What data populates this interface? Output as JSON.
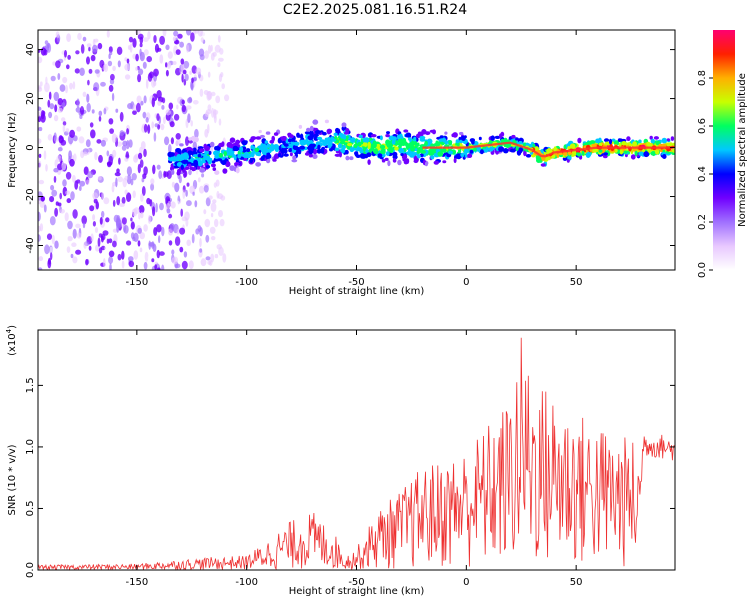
{
  "title": "C2E2.2025.081.16.51.R24",
  "chart_data": [
    {
      "type": "heatmap",
      "xlabel": "Height of straight line (km)",
      "ylabel": "Frequency (Hz)",
      "xlim": [
        -195,
        95
      ],
      "ylim": [
        -50,
        48
      ],
      "xticks": [
        -150,
        -100,
        -50,
        0,
        50
      ],
      "yticks": [
        -40,
        -20,
        0,
        20,
        40
      ],
      "colorbar": {
        "label": "Normalized spectral amplitude",
        "range": [
          0,
          1
        ],
        "ticks": [
          0.0,
          0.2,
          0.4,
          0.6,
          0.8
        ],
        "tick_labels": [
          "0.0",
          "0.2",
          "0.4",
          "0.6",
          "0.8"
        ],
        "colormap": [
          "#ffffff",
          "#e8c8ff",
          "#a070ff",
          "#7000ff",
          "#0000ff",
          "#00c8ff",
          "#00ff60",
          "#c8ff00",
          "#ffb000",
          "#ff2000",
          "#ff0070"
        ]
      },
      "ridge": {
        "x": [
          -130,
          -120,
          -110,
          -100,
          -90,
          -80,
          -70,
          -60,
          -55,
          -50,
          -40,
          -30,
          -20,
          -10,
          0,
          10,
          20,
          30,
          35,
          40,
          50,
          60,
          70,
          80,
          90
        ],
        "y": [
          -5,
          -4,
          -3,
          -2,
          0,
          1,
          2,
          3,
          2,
          1,
          0,
          1,
          0,
          0,
          0,
          1,
          2,
          -1,
          -4,
          -2,
          -1,
          0,
          0,
          0,
          0
        ]
      }
    },
    {
      "type": "line",
      "xlabel": "Height of straight line (km)",
      "ylabel": "SNR (10 * v/v)",
      "multiplier": "(x10",
      "multiplier_exp": "4",
      "xlim": [
        -195,
        95
      ],
      "ylim": [
        0,
        1.95
      ],
      "xticks": [
        -150,
        -100,
        -50,
        0,
        50
      ],
      "yticks": [
        0.0,
        0.5,
        1.0,
        1.5
      ],
      "ytick_labels": [
        "0.0",
        "0.5",
        "1.0",
        "1.5"
      ],
      "color": "#ee3030",
      "envelope": {
        "x": [
          -195,
          -150,
          -120,
          -100,
          -90,
          -80,
          -70,
          -60,
          -55,
          -50,
          -40,
          -30,
          -20,
          -10,
          0,
          10,
          20,
          25,
          30,
          40,
          50,
          60,
          70,
          80,
          90,
          95
        ],
        "y": [
          0.04,
          0.05,
          0.1,
          0.12,
          0.25,
          0.4,
          0.48,
          0.3,
          0.12,
          0.18,
          0.5,
          0.65,
          0.85,
          0.9,
          1.0,
          1.2,
          1.4,
          1.92,
          1.6,
          1.45,
          1.3,
          1.2,
          1.1,
          1.05,
          1.02,
          1.0
        ]
      }
    }
  ]
}
